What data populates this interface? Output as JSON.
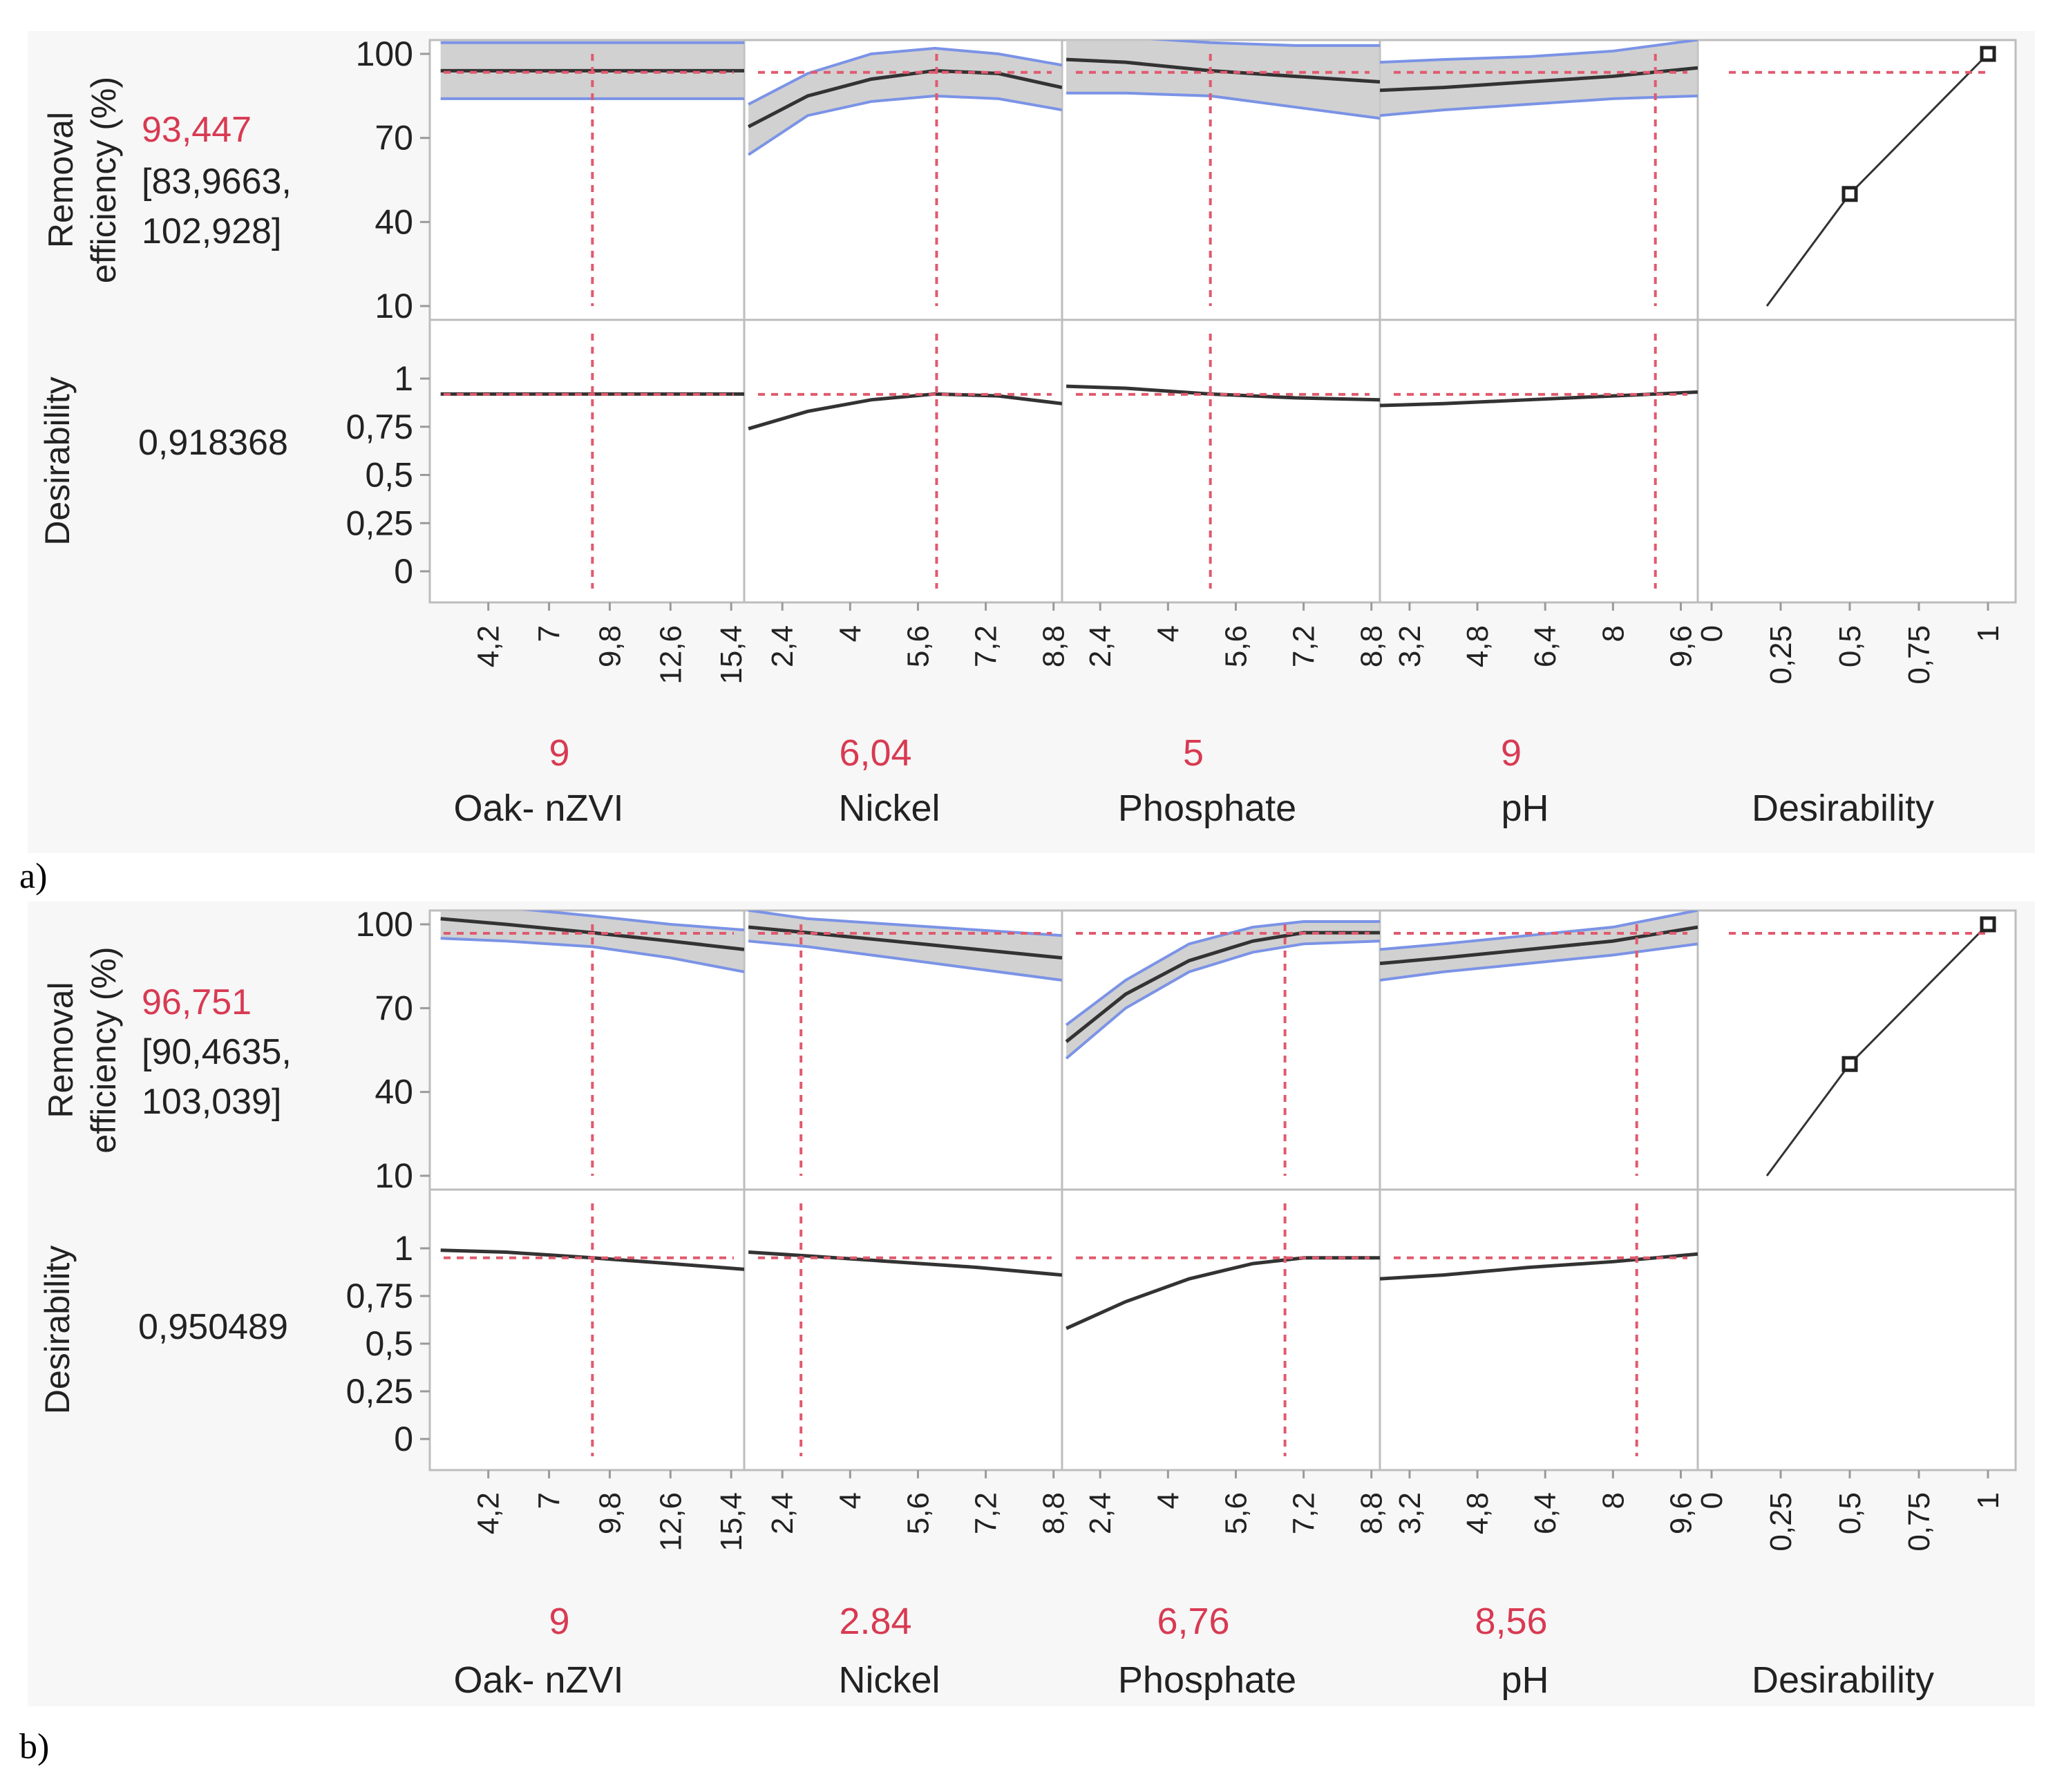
{
  "panel_labels": [
    "a)",
    "b)"
  ],
  "common": {
    "response_label_line1": "Removal",
    "response_label_line2": "efficiency (%)",
    "desirability_label": "Desirability",
    "response_yticks": [
      {
        "value": 100,
        "label": "100"
      },
      {
        "value": 70,
        "label": "70"
      },
      {
        "value": 40,
        "label": "40"
      },
      {
        "value": 10,
        "label": "10"
      }
    ],
    "desirability_yticks": [
      {
        "value": 1,
        "label": "1"
      },
      {
        "value": 0.75,
        "label": "0,75"
      },
      {
        "value": 0.5,
        "label": "0,5"
      },
      {
        "value": 0.25,
        "label": "0,25"
      },
      {
        "value": 0,
        "label": "0"
      }
    ],
    "response_ylim": [
      10,
      100
    ],
    "desirability_ylim": [
      0,
      1
    ],
    "factor_names": [
      "Oak- nZVI",
      "Nickel",
      "Phosphate",
      "pH",
      "Desirability"
    ],
    "x_ticks": [
      [
        {
          "value": 4.2,
          "label": "4,2"
        },
        {
          "value": 7,
          "label": "7"
        },
        {
          "value": 9.8,
          "label": "9,8"
        },
        {
          "value": 12.6,
          "label": "12,6"
        },
        {
          "value": 15.4,
          "label": "15,4"
        }
      ],
      [
        {
          "value": 2.4,
          "label": "2,4"
        },
        {
          "value": 4,
          "label": "4"
        },
        {
          "value": 5.6,
          "label": "5,6"
        },
        {
          "value": 7.2,
          "label": "7,2"
        },
        {
          "value": 8.8,
          "label": "8,8"
        }
      ],
      [
        {
          "value": 2.4,
          "label": "2,4"
        },
        {
          "value": 4,
          "label": "4"
        },
        {
          "value": 5.6,
          "label": "5,6"
        },
        {
          "value": 7.2,
          "label": "7,2"
        },
        {
          "value": 8.8,
          "label": "8,8"
        }
      ],
      [
        {
          "value": 3.2,
          "label": "3,2"
        },
        {
          "value": 4.8,
          "label": "4,8"
        },
        {
          "value": 6.4,
          "label": "6,4"
        },
        {
          "value": 8,
          "label": "8"
        },
        {
          "value": 9.6,
          "label": "9,6"
        }
      ],
      [
        {
          "value": 0,
          "label": "0"
        },
        {
          "value": 0.25,
          "label": "0,25"
        },
        {
          "value": 0.5,
          "label": "0,5"
        },
        {
          "value": 0.75,
          "label": "0,75"
        },
        {
          "value": 1,
          "label": "1"
        }
      ]
    ],
    "x_ranges": [
      [
        1.5,
        16
      ],
      [
        1.5,
        9
      ],
      [
        1.5,
        9
      ],
      [
        2.5,
        10
      ],
      [
        -0.05,
        1.1
      ]
    ]
  },
  "chart_data": [
    {
      "type": "line",
      "panel": "a)",
      "predicted_value": "93,447",
      "ci_line1": "[83,9663,",
      "ci_line2": "102,928]",
      "desirability_value": "0,918368",
      "factor_values": [
        "9",
        "6,04",
        "5",
        "9",
        ""
      ],
      "response_current": 93.4,
      "desirability_current": 0.918,
      "factors": [
        {
          "name": "Oak- nZVI",
          "current": 9,
          "x": [
            2,
            16
          ],
          "y": [
            94,
            94
          ],
          "lower": [
            84,
            84
          ],
          "upper": [
            104,
            104
          ],
          "desirability": [
            0.92,
            0.92
          ]
        },
        {
          "name": "Nickel",
          "current": 6.04,
          "x": [
            1.6,
            3,
            4.5,
            6,
            7.5,
            9
          ],
          "y": [
            74,
            85,
            91,
            94,
            93,
            88
          ],
          "lower": [
            64,
            78,
            83,
            85,
            84,
            80
          ],
          "upper": [
            82,
            93,
            100,
            102,
            100,
            96
          ],
          "desirability": [
            0.74,
            0.83,
            0.89,
            0.92,
            0.91,
            0.87
          ]
        },
        {
          "name": "Phosphate",
          "current": 5,
          "x": [
            1.6,
            3,
            5,
            7,
            9
          ],
          "y": [
            98,
            97,
            94,
            92,
            90
          ],
          "lower": [
            86,
            86,
            85,
            81,
            77
          ],
          "upper": [
            108,
            106,
            104,
            103,
            103
          ],
          "desirability": [
            0.96,
            0.95,
            0.92,
            0.9,
            0.89
          ]
        },
        {
          "name": "pH",
          "current": 9,
          "x": [
            2.5,
            4,
            6,
            8,
            10
          ],
          "y": [
            87,
            88,
            90,
            92,
            95
          ],
          "lower": [
            78,
            80,
            82,
            84,
            85
          ],
          "upper": [
            97,
            98,
            99,
            101,
            105
          ],
          "desirability": [
            0.86,
            0.87,
            0.89,
            0.91,
            0.93
          ]
        }
      ],
      "desirability_curve": {
        "x": [
          0.2,
          0.5,
          1.0
        ],
        "y": [
          10,
          50,
          100
        ],
        "markers": [
          [
            0.5,
            50
          ],
          [
            1.0,
            100
          ]
        ]
      }
    },
    {
      "type": "line",
      "panel": "b)",
      "predicted_value": "96,751",
      "ci_line1": "[90,4635,",
      "ci_line2": "103,039]",
      "desirability_value": "0,950489",
      "factor_values": [
        "9",
        "2.84",
        "6,76",
        "8,56",
        ""
      ],
      "response_current": 96.8,
      "desirability_current": 0.95,
      "factors": [
        {
          "name": "Oak- nZVI",
          "current": 9,
          "x": [
            2,
            5,
            9,
            12.6,
            16
          ],
          "y": [
            102,
            100,
            97,
            94,
            91
          ],
          "lower": [
            95,
            94,
            92,
            88,
            83
          ],
          "upper": [
            107,
            106,
            103,
            100,
            98
          ],
          "desirability": [
            0.99,
            0.98,
            0.95,
            0.92,
            0.89
          ]
        },
        {
          "name": "Nickel",
          "current": 2.84,
          "x": [
            1.6,
            3,
            5,
            7,
            9
          ],
          "y": [
            99,
            97,
            94,
            91,
            88
          ],
          "lower": [
            94,
            92,
            88,
            84,
            80
          ],
          "upper": [
            105,
            102,
            100,
            98,
            96
          ],
          "desirability": [
            0.98,
            0.96,
            0.93,
            0.9,
            0.86
          ]
        },
        {
          "name": "Phosphate",
          "current": 6.76,
          "x": [
            1.6,
            3,
            4.5,
            6,
            7.2,
            9
          ],
          "y": [
            58,
            75,
            87,
            94,
            97,
            97
          ],
          "lower": [
            52,
            70,
            83,
            90,
            93,
            94
          ],
          "upper": [
            64,
            80,
            93,
            99,
            101,
            101
          ],
          "desirability": [
            0.58,
            0.72,
            0.84,
            0.92,
            0.95,
            0.95
          ]
        },
        {
          "name": "pH",
          "current": 8.56,
          "x": [
            2.5,
            4,
            6,
            8,
            10
          ],
          "y": [
            86,
            88,
            91,
            94,
            99
          ],
          "lower": [
            80,
            83,
            86,
            89,
            93
          ],
          "upper": [
            91,
            93,
            96,
            99,
            105
          ],
          "desirability": [
            0.84,
            0.86,
            0.9,
            0.93,
            0.97
          ]
        }
      ],
      "desirability_curve": {
        "x": [
          0.2,
          0.5,
          1.0
        ],
        "y": [
          10,
          50,
          100
        ],
        "markers": [
          [
            0.5,
            50
          ],
          [
            1.0,
            100
          ]
        ]
      }
    }
  ]
}
